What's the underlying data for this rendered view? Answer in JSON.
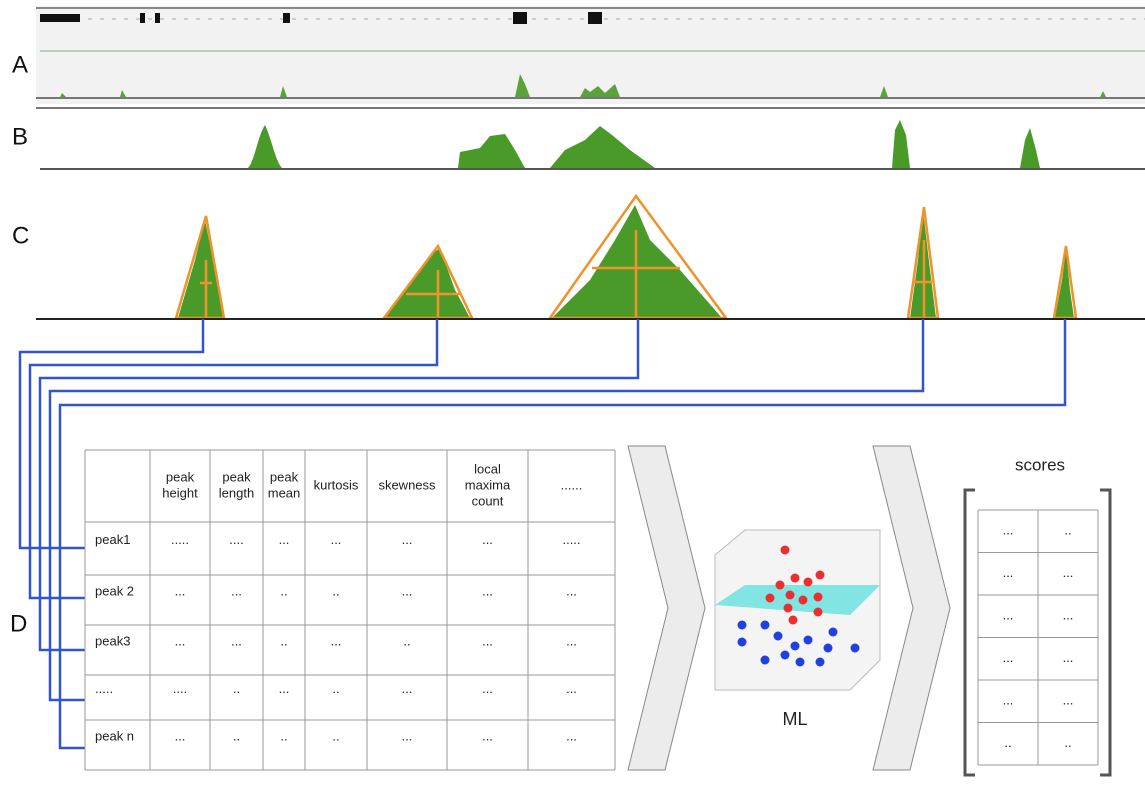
{
  "panels": {
    "a": "A",
    "b": "B",
    "c": "C",
    "d": "D"
  },
  "feature_table": {
    "header": [
      [],
      [
        "peak",
        "height"
      ],
      [
        "peak",
        "length"
      ],
      [
        "peak",
        "mean"
      ],
      [
        "kurtosis"
      ],
      [
        "skewness"
      ],
      [
        "local",
        "maxima",
        "count"
      ],
      [
        "......"
      ]
    ],
    "rows": [
      [
        "peak1",
        ".....",
        "....",
        "...",
        "...",
        "...",
        "...",
        "....."
      ],
      [
        "peak 2",
        "...",
        "...",
        "..",
        "..",
        "...",
        "...",
        "..."
      ],
      [
        "peak3",
        "...",
        "...",
        "..",
        "...",
        "..",
        "...",
        "..."
      ],
      [
        ".....",
        "....",
        "..",
        "...",
        "..",
        "...",
        "...",
        "..."
      ],
      [
        "peak n",
        "...",
        "..",
        "..",
        "..",
        "...",
        "...",
        "..."
      ]
    ]
  },
  "model": {
    "label": "ML"
  },
  "scores": {
    "title": "scores",
    "rows": [
      [
        "...",
        ".."
      ],
      [
        "...",
        "..."
      ],
      [
        "...",
        "..."
      ],
      [
        "...",
        "..."
      ],
      [
        "...",
        "..."
      ],
      [
        "..",
        ".."
      ]
    ]
  }
}
